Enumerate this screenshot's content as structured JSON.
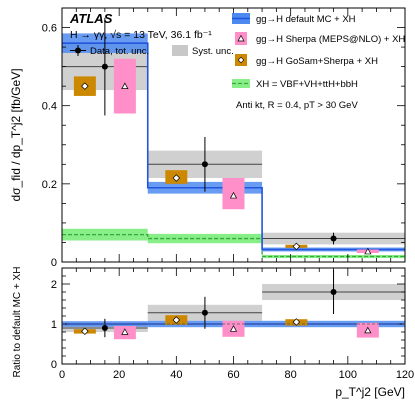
{
  "chart_data": [
    {
      "type": "bar",
      "panel": "main",
      "experiment": "ATLAS",
      "process_line": "H → γγ, √s = 13 TeV, 36.1 fb⁻¹",
      "cut_line": "Anti k_t R = 0.4, p_T > 30 GeV",
      "ylabel": "dσ_fid / dp_T^j2 [fb/GeV]",
      "ylim": [
        0,
        0.65
      ],
      "yticks": [
        0,
        0.2,
        0.4,
        0.6
      ],
      "xlim": [
        0,
        120
      ],
      "bins": [
        [
          0,
          30
        ],
        [
          30,
          70
        ],
        [
          70,
          120
        ]
      ],
      "data": {
        "name": "Data, tot. unc.",
        "points": [
          {
            "x": 15,
            "y": 0.5,
            "err": 0.125,
            "syst": 0.06
          },
          {
            "x": 50,
            "y": 0.25,
            "err": 0.07,
            "syst": 0.035
          },
          {
            "x": 95,
            "y": 0.06,
            "err": 0.015,
            "syst": 0.015
          }
        ]
      },
      "default_mc": {
        "name": "gg→H default MC + XH",
        "values": [
          0.56,
          0.19,
          0.032
        ],
        "band": [
          0.025,
          0.015,
          0.005
        ]
      },
      "sherpa": {
        "name": "gg→H Sherpa (MEPS@NLO) + XH",
        "x": [
          22,
          60,
          107
        ],
        "values": [
          0.45,
          0.17,
          0.027
        ],
        "lo": [
          0.38,
          0.135,
          0.023
        ],
        "hi": [
          0.52,
          0.215,
          0.032
        ]
      },
      "gosam": {
        "name": "gg→H GoSam+Sherpa + XH",
        "x": [
          8,
          40,
          82
        ],
        "values": [
          0.45,
          0.215,
          0.04
        ],
        "lo": [
          0.425,
          0.2,
          0.037
        ],
        "hi": [
          0.475,
          0.235,
          0.044
        ]
      },
      "xh": {
        "name": "XH = VBF+VH+ttH+bbH",
        "values": [
          0.07,
          0.06,
          0.014
        ],
        "band": [
          0.015,
          0.012,
          0.004
        ]
      },
      "syst_legend": "Syst. unc."
    },
    {
      "type": "bar",
      "panel": "ratio",
      "ylabel": "Ratio to default MC + XH",
      "xlabel": "p_T^j2 [GeV]",
      "ylim": [
        0,
        2.4
      ],
      "yticks": [
        0,
        1,
        2
      ],
      "xlim": [
        0,
        120
      ],
      "xticks": [
        0,
        20,
        40,
        60,
        80,
        100,
        120
      ],
      "bins": [
        [
          0,
          30
        ],
        [
          30,
          70
        ],
        [
          70,
          120
        ]
      ],
      "data": {
        "points": [
          {
            "x": 15,
            "y": 0.9,
            "err": 0.23,
            "syst": 0.1
          },
          {
            "x": 50,
            "y": 1.28,
            "err": 0.4,
            "syst": 0.2
          },
          {
            "x": 95,
            "y": 1.8,
            "err": 0.55,
            "syst": 0.2
          }
        ]
      },
      "default_mc": {
        "values": [
          1.0,
          1.0,
          1.0
        ],
        "band": [
          0.07,
          0.08,
          0.08
        ]
      },
      "sherpa": {
        "x": [
          22,
          60,
          107
        ],
        "values": [
          0.8,
          0.88,
          0.84
        ],
        "lo": [
          0.62,
          0.68,
          0.66
        ],
        "hi": [
          0.95,
          1.08,
          1.03
        ]
      },
      "gosam": {
        "x": [
          8,
          40,
          82
        ],
        "values": [
          0.82,
          1.1,
          1.05
        ],
        "lo": [
          0.76,
          0.98,
          0.96
        ],
        "hi": [
          0.87,
          1.22,
          1.12
        ]
      }
    }
  ],
  "legend": {
    "atlas": "ATLAS",
    "process": "H → γγ, √s = 13 TeV, 36.1 fb⁻¹",
    "data": "Data, tot. unc.",
    "syst": "Syst. unc.",
    "default_mc": "gg→H default MC + XH",
    "sherpa": "gg→H Sherpa (MEPS@NLO) + XH",
    "gosam": "gg→H GoSam+Sherpa + XH",
    "xh": "XH = VBF+VH+ttH+bbH",
    "cut": "Anti kt, R = 0.4, pT > 30 GeV"
  },
  "colors": {
    "default_mc_line": "#2255dd",
    "default_mc_band": "#4d8af0",
    "sherpa": "#ff8fc8",
    "gosam": "#cc8800",
    "xh_fill": "#88ee88",
    "xh_line": "#33aa33",
    "syst": "#c8c8c8"
  }
}
